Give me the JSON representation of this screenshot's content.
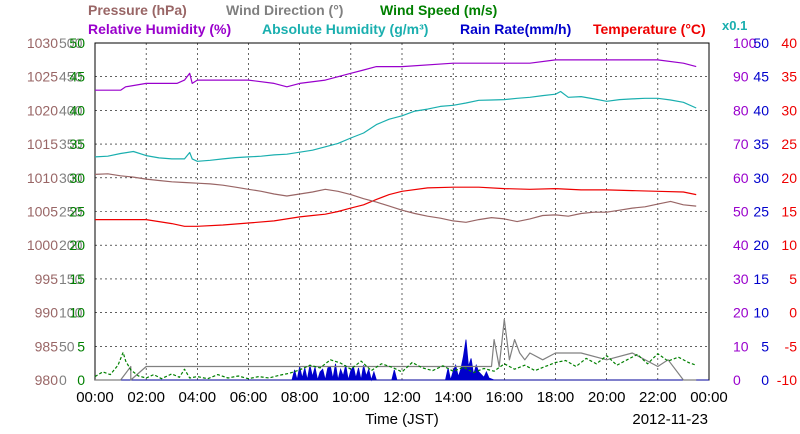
{
  "chart_data": {
    "type": "line",
    "legend": [
      {
        "id": "pressure",
        "text": "Pressure (hPa)",
        "color": "#996666"
      },
      {
        "id": "wind-direction",
        "text": "Wind Direction (°)",
        "color": "#808080"
      },
      {
        "id": "wind-speed",
        "text": "Wind Speed (m/s)",
        "color": "#008000"
      },
      {
        "id": "relative-humidity",
        "text": "Relative Humidity (%)",
        "color": "#9900cc"
      },
      {
        "id": "absolute-humidity",
        "text": "Absolute Humidity (g/m³)",
        "color": "#1aafaf"
      },
      {
        "id": "rain-rate",
        "text": "Rain Rate(mm/h)",
        "color": "#0000cc"
      },
      {
        "id": "temperature",
        "text": "Temperature (°C)",
        "color": "#ee0000"
      }
    ],
    "abs_humidity_scale_note": "x0.1",
    "xlabel": "Time (JST)",
    "date": "2012-11-23",
    "x_ticks": [
      "00:00",
      "02:00",
      "04:00",
      "06:00",
      "08:00",
      "10:00",
      "12:00",
      "14:00",
      "16:00",
      "18:00",
      "20:00",
      "22:00",
      "00:00"
    ],
    "xlim_hours": [
      0,
      24
    ],
    "grid": true,
    "axes": {
      "pressure": {
        "range": [
          980,
          1030
        ],
        "ticks": [
          "980",
          "985",
          "990",
          "995",
          "1000",
          "1005",
          "1010",
          "1015",
          "1020",
          "1025",
          "1030"
        ],
        "color": "#996666"
      },
      "wind_direction": {
        "range": [
          0,
          500
        ],
        "ticks": [
          "0",
          "50",
          "100",
          "150",
          "200",
          "250",
          "300",
          "350",
          "400",
          "450",
          "500"
        ],
        "color": "#808080"
      },
      "wind_speed": {
        "range": [
          0,
          50
        ],
        "ticks": [
          "0",
          "5",
          "10",
          "15",
          "20",
          "25",
          "30",
          "35",
          "40",
          "45",
          "50"
        ],
        "color": "#008000"
      },
      "relative_humidity": {
        "range": [
          0,
          100
        ],
        "ticks": [
          "0",
          "10",
          "20",
          "30",
          "40",
          "50",
          "60",
          "70",
          "80",
          "90",
          "100"
        ],
        "color": "#9900cc"
      },
      "rain_rate": {
        "range": [
          0,
          50
        ],
        "ticks": [
          "0",
          "5",
          "10",
          "15",
          "20",
          "25",
          "30",
          "35",
          "40",
          "45",
          "50"
        ],
        "color": "#0000cc"
      },
      "temperature": {
        "range": [
          -10,
          40
        ],
        "ticks": [
          "-10",
          "-5",
          "0",
          "5",
          "10",
          "15",
          "20",
          "25",
          "30",
          "35",
          "40"
        ],
        "color": "#ee0000"
      }
    },
    "series": [
      {
        "name": "Pressure (hPa)",
        "axis": "pressure",
        "color": "#996666",
        "style": "line",
        "x": [
          0,
          0.5,
          1,
          1.5,
          2,
          2.5,
          3,
          3.5,
          4,
          4.5,
          5,
          5.5,
          6,
          6.5,
          7,
          7.5,
          8,
          8.5,
          9,
          9.5,
          10,
          10.5,
          11,
          11.5,
          12,
          12.5,
          13,
          13.5,
          14,
          14.5,
          15,
          15.5,
          16,
          16.5,
          17,
          17.5,
          18,
          18.5,
          19,
          19.5,
          20,
          20.5,
          21,
          21.5,
          22,
          22.5,
          23,
          23.5
        ],
        "y": [
          1010.5,
          1010.6,
          1010.3,
          1010.1,
          1009.8,
          1009.6,
          1009.4,
          1009.3,
          1009.2,
          1009.1,
          1008.9,
          1008.6,
          1008.3,
          1008.0,
          1007.6,
          1007.3,
          1007.6,
          1007.9,
          1008.3,
          1008.0,
          1007.5,
          1006.9,
          1006.4,
          1005.8,
          1005.2,
          1004.7,
          1004.3,
          1004.0,
          1003.6,
          1003.4,
          1003.8,
          1004.1,
          1003.9,
          1003.5,
          1003.9,
          1004.4,
          1004.5,
          1004.3,
          1004.7,
          1004.9,
          1004.9,
          1005.2,
          1005.5,
          1005.7,
          1006.1,
          1006.5,
          1006.0,
          1005.8
        ]
      },
      {
        "name": "Relative Humidity (%)",
        "axis": "relative_humidity",
        "color": "#9900cc",
        "style": "line",
        "x": [
          0,
          1,
          1.2,
          2,
          2.8,
          3.2,
          3.5,
          3.7,
          3.8,
          4,
          5,
          6,
          7,
          7.5,
          8,
          9,
          10,
          10.5,
          11,
          12,
          14,
          16,
          17,
          18,
          19,
          20,
          22,
          23,
          23.5
        ],
        "y": [
          86,
          86,
          87,
          88,
          88,
          88,
          89,
          91,
          88,
          89,
          89,
          89,
          88,
          87,
          88,
          89,
          91,
          92,
          93,
          93,
          94,
          94,
          94,
          95,
          95,
          95,
          95,
          94,
          93
        ]
      },
      {
        "name": "Absolute Humidity (g/m³)",
        "axis": "relative_humidity",
        "color": "#1aafaf",
        "style": "line",
        "x": [
          0,
          0.5,
          1,
          1.5,
          2,
          2.5,
          3,
          3.5,
          3.7,
          3.8,
          4,
          4.5,
          5,
          5.5,
          6,
          6.5,
          7,
          7.5,
          8,
          8.5,
          9,
          9.5,
          10,
          10.5,
          11,
          11.5,
          12,
          12.5,
          13,
          13.5,
          14,
          14.5,
          15,
          15.5,
          16,
          16.5,
          17,
          17.5,
          18,
          18.2,
          18.5,
          19,
          19.5,
          20,
          20.5,
          21,
          21.5,
          22,
          22.5,
          23,
          23.5
        ],
        "y": [
          66.2,
          66.4,
          67.2,
          67.8,
          66.6,
          65.9,
          65.6,
          65.6,
          67.5,
          65.6,
          64.9,
          65.2,
          65.6,
          66.0,
          66.2,
          66.4,
          66.8,
          67.0,
          67.6,
          68.2,
          69.2,
          70.2,
          71.8,
          73.3,
          75.8,
          77.4,
          78.4,
          79.8,
          80.4,
          81.2,
          81.5,
          82.2,
          83.0,
          83.1,
          83.2,
          83.6,
          83.9,
          84.4,
          84.8,
          85.6,
          83.9,
          84.1,
          83.4,
          82.7,
          83.2,
          83.4,
          83.6,
          83.6,
          83.1,
          82.4,
          80.7
        ]
      },
      {
        "name": "Temperature (°C)",
        "axis": "temperature",
        "color": "#ee0000",
        "style": "line",
        "x": [
          0,
          1,
          2,
          3,
          3.5,
          4,
          5,
          6,
          7,
          8,
          8.5,
          9,
          9.5,
          10,
          10.5,
          11,
          11.5,
          12,
          13,
          14,
          15,
          16,
          17,
          18,
          19,
          20,
          21,
          22,
          23,
          23.5
        ],
        "y": [
          13.8,
          13.8,
          13.8,
          13.2,
          12.8,
          12.8,
          13.0,
          13.3,
          13.6,
          14.2,
          14.4,
          14.6,
          15.0,
          15.5,
          16.0,
          16.8,
          17.5,
          18.0,
          18.5,
          18.6,
          18.6,
          18.4,
          18.3,
          18.4,
          18.2,
          18.2,
          18.1,
          18.0,
          17.9,
          17.5
        ]
      },
      {
        "name": "Wind Direction (°)",
        "axis": "wind_direction",
        "color": "#808080",
        "style": "line",
        "x": [
          0,
          0.4,
          0.4,
          1,
          1.4,
          1.4,
          2,
          2.6,
          3.4,
          3.6,
          4,
          5,
          6,
          7,
          7.6,
          7.9,
          8,
          9,
          10,
          10.5,
          11,
          11.8,
          12,
          13,
          14,
          15,
          15.5,
          15.6,
          15.8,
          16,
          16.2,
          16.4,
          16.6,
          16.8,
          17,
          17.5,
          18,
          19,
          20,
          21,
          22,
          22.4,
          23,
          23.5
        ],
        "y": [
          0,
          0,
          0,
          0,
          20,
          0,
          20,
          20,
          20,
          20,
          20,
          20,
          20,
          20,
          20,
          20,
          20,
          20,
          20,
          20,
          20,
          20,
          20,
          20,
          20,
          20,
          20,
          60,
          20,
          90,
          30,
          60,
          40,
          30,
          40,
          30,
          40,
          40,
          30,
          40,
          20,
          30,
          0,
          0
        ]
      },
      {
        "name": "Wind Speed (m/s)",
        "axis": "wind_speed",
        "color": "#008000",
        "style": "dashed",
        "x": [
          0,
          0.3,
          0.6,
          0.9,
          1.1,
          1.2,
          1.4,
          1.7,
          2,
          2.3,
          2.6,
          3,
          3.3,
          3.5,
          3.7,
          4,
          4.4,
          4.8,
          5.2,
          5.6,
          6,
          6.4,
          6.8,
          7.2,
          7.6,
          8,
          8.4,
          8.8,
          9.2,
          9.6,
          10,
          10.4,
          10.8,
          11.2,
          11.6,
          12,
          12.4,
          12.8,
          13.2,
          13.6,
          14,
          14.4,
          14.8,
          15.2,
          15.6,
          16,
          16.4,
          16.8,
          17.2,
          17.6,
          18,
          18.4,
          18.8,
          19.2,
          19.6,
          20,
          20.4,
          20.8,
          21.2,
          21.6,
          22,
          22.4,
          22.8,
          23.2,
          23.5
        ],
        "y": [
          0.5,
          1.2,
          0.8,
          2.2,
          4.1,
          2.8,
          1.5,
          0.6,
          0.3,
          0.8,
          0.2,
          0.9,
          0.4,
          1.6,
          0.3,
          0.5,
          0.2,
          0.8,
          0.3,
          0.6,
          0.2,
          0.5,
          0.3,
          0.7,
          1.0,
          1.5,
          2.2,
          1.8,
          3.0,
          2.5,
          1.6,
          2.8,
          1.4,
          2.4,
          1.9,
          1.2,
          2.6,
          1.8,
          1.4,
          2.1,
          1.3,
          1.9,
          1.1,
          1.7,
          1.3,
          2.4,
          1.6,
          2.2,
          1.4,
          2.0,
          2.6,
          2.9,
          2.0,
          3.2,
          2.4,
          3.6,
          2.2,
          3.0,
          3.8,
          2.4,
          3.9,
          2.8,
          3.4,
          2.6,
          2.2
        ]
      },
      {
        "name": "Rain Rate(mm/h)",
        "axis": "rain_rate",
        "color": "#0000cc",
        "style": "area",
        "x": [
          0,
          7.7,
          7.8,
          7.9,
          8.0,
          8.1,
          8.2,
          8.3,
          8.4,
          8.5,
          8.6,
          8.7,
          8.8,
          8.9,
          9.0,
          9.1,
          9.2,
          9.3,
          9.4,
          9.5,
          9.6,
          9.7,
          9.8,
          9.9,
          10.0,
          10.1,
          10.2,
          10.3,
          10.4,
          10.5,
          10.6,
          10.7,
          10.8,
          10.9,
          11.0,
          11.6,
          11.7,
          11.8,
          13.7,
          13.8,
          13.9,
          14.0,
          14.1,
          14.2,
          14.3,
          14.4,
          14.5,
          14.6,
          14.7,
          14.8,
          14.9,
          15.0,
          15.2,
          15.3,
          15.4,
          15.6,
          24
        ],
        "y": [
          0,
          0,
          1.5,
          0,
          2.0,
          0.3,
          1.8,
          0,
          2.2,
          0.5,
          1.9,
          0,
          1.2,
          1.6,
          0,
          1.8,
          2.0,
          0.2,
          2.4,
          0,
          1.6,
          0.6,
          2.2,
          0,
          1.4,
          2.0,
          0.3,
          1.8,
          0,
          2.2,
          0.6,
          1.6,
          0,
          1.2,
          0,
          0,
          1.5,
          0,
          0,
          1.8,
          0,
          1.3,
          2.2,
          0.5,
          1.6,
          3.5,
          6.0,
          2.0,
          3.2,
          0.8,
          2.2,
          1.2,
          0.4,
          1.2,
          0.3,
          0,
          0
        ]
      }
    ]
  }
}
